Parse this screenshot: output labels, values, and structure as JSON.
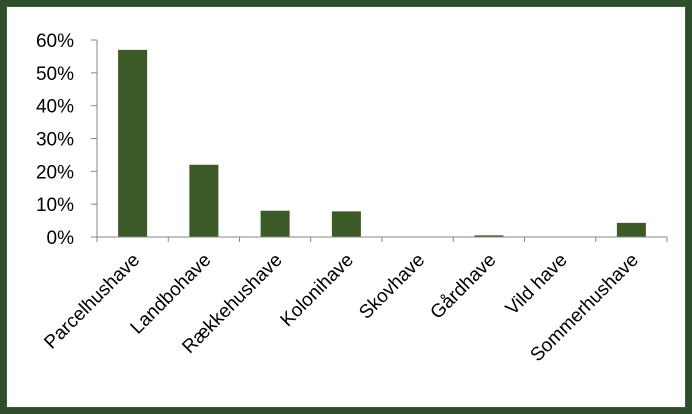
{
  "chart_data": {
    "type": "bar",
    "title": "",
    "xlabel": "",
    "ylabel": "",
    "categories": [
      "Parcelhushave",
      "Landbohave",
      "Rækkehushave",
      "Kolonihave",
      "Skovhave",
      "Gårdhave",
      "Vild have",
      "Sommerhushave"
    ],
    "values": [
      0.57,
      0.22,
      0.08,
      0.078,
      0.0,
      0.005,
      0.001,
      0.043
    ],
    "y_ticks": [
      "0%",
      "10%",
      "20%",
      "30%",
      "40%",
      "50%",
      "60%"
    ],
    "ylim": [
      0,
      0.6
    ],
    "grid": false,
    "legend": "none",
    "bar_color": "#3c5a28",
    "frame_color": "#2e4d2a"
  }
}
